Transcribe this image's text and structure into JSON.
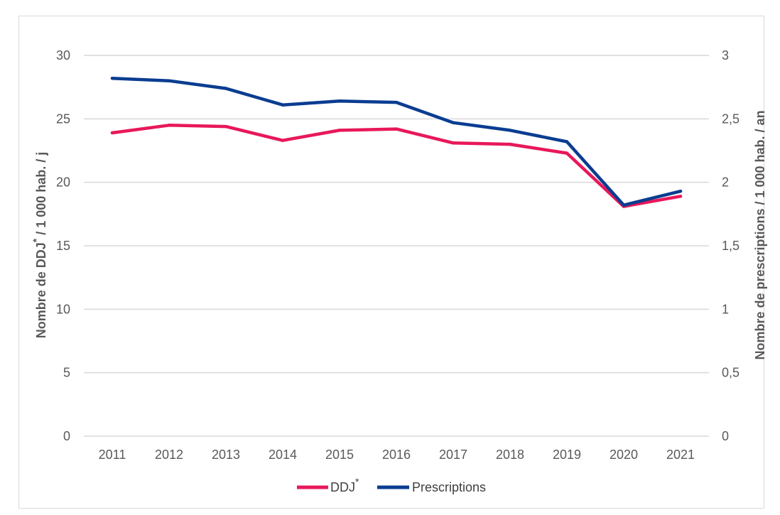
{
  "chart_data": {
    "type": "line",
    "categories": [
      "2011",
      "2012",
      "2013",
      "2014",
      "2015",
      "2016",
      "2017",
      "2018",
      "2019",
      "2020",
      "2021"
    ],
    "series": [
      {
        "name": "DDJ",
        "name_superscript": "*",
        "axis": "left",
        "color": "#e8185a",
        "values": [
          23.9,
          24.5,
          24.4,
          23.3,
          24.1,
          24.2,
          23.1,
          23.0,
          22.3,
          18.1,
          18.9
        ]
      },
      {
        "name": "Prescriptions",
        "axis": "right",
        "color": "#0a3d91",
        "values": [
          2.82,
          2.8,
          2.74,
          2.61,
          2.64,
          2.63,
          2.47,
          2.41,
          2.32,
          1.82,
          1.93
        ]
      }
    ],
    "y_left": {
      "label_pre": "Nombre de DDJ",
      "label_sup": "*",
      "label_post": " / 1 000 hab. / j",
      "ylim": [
        0,
        30
      ],
      "ticks": [
        "0",
        "5",
        "10",
        "15",
        "20",
        "25",
        "30"
      ]
    },
    "y_right": {
      "label": "Nombre de prescriptions / 1 000 hab. / an",
      "ylim": [
        0,
        3
      ],
      "ticks": [
        "0",
        "0,5",
        "1",
        "1,5",
        "2",
        "2,5",
        "3"
      ]
    },
    "grid": true,
    "grid_color": "#d9d9d9",
    "legend_position": "bottom"
  }
}
